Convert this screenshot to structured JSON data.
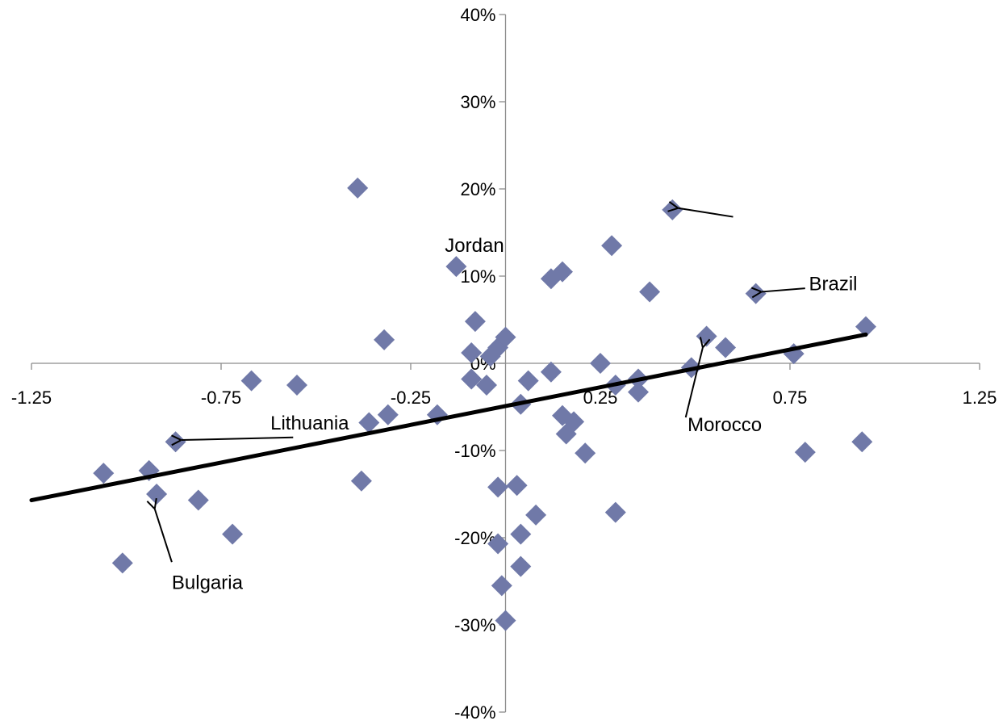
{
  "chart_data": {
    "type": "scatter",
    "title": "",
    "xlabel": "",
    "ylabel": "",
    "xlim": [
      -1.25,
      1.25
    ],
    "ylim": [
      -0.4,
      0.4
    ],
    "x_ticks": [
      {
        "value": -1.25,
        "label": "-1.25"
      },
      {
        "value": -0.75,
        "label": "-0.75"
      },
      {
        "value": -0.25,
        "label": "-0.25"
      },
      {
        "value": 0.25,
        "label": "0.25"
      },
      {
        "value": 0.75,
        "label": "0.75"
      },
      {
        "value": 1.25,
        "label": "1.25"
      }
    ],
    "y_ticks": [
      {
        "value": 0.4,
        "label": "40%"
      },
      {
        "value": 0.3,
        "label": "30%"
      },
      {
        "value": 0.2,
        "label": "20%"
      },
      {
        "value": 0.1,
        "label": "10%"
      },
      {
        "value": 0.0,
        "label": "0%"
      },
      {
        "value": -0.1,
        "label": "-10%"
      },
      {
        "value": -0.2,
        "label": "-20%"
      },
      {
        "value": -0.3,
        "label": "-30%"
      },
      {
        "value": -0.4,
        "label": "-40%"
      }
    ],
    "series": [
      {
        "marker": "diamond",
        "color": "#7079A8",
        "points": [
          {
            "x": -1.06,
            "y": -0.126
          },
          {
            "x": -1.01,
            "y": -0.229
          },
          {
            "x": -0.94,
            "y": -0.123
          },
          {
            "x": -0.92,
            "y": -0.15
          },
          {
            "x": -0.87,
            "y": -0.09
          },
          {
            "x": -0.81,
            "y": -0.157
          },
          {
            "x": -0.72,
            "y": -0.196
          },
          {
            "x": -0.67,
            "y": -0.02
          },
          {
            "x": -0.55,
            "y": -0.025
          },
          {
            "x": -0.39,
            "y": 0.201
          },
          {
            "x": -0.38,
            "y": -0.135
          },
          {
            "x": -0.36,
            "y": -0.068
          },
          {
            "x": -0.32,
            "y": 0.027
          },
          {
            "x": -0.31,
            "y": -0.059
          },
          {
            "x": -0.18,
            "y": -0.059
          },
          {
            "x": -0.13,
            "y": 0.111
          },
          {
            "x": -0.08,
            "y": 0.048
          },
          {
            "x": -0.09,
            "y": 0.012
          },
          {
            "x": -0.09,
            "y": -0.018
          },
          {
            "x": -0.05,
            "y": -0.025
          },
          {
            "x": -0.04,
            "y": 0.008
          },
          {
            "x": -0.02,
            "y": 0.018
          },
          {
            "x": 0.0,
            "y": 0.03
          },
          {
            "x": 0.0,
            "y": -0.295
          },
          {
            "x": -0.01,
            "y": -0.255
          },
          {
            "x": -0.02,
            "y": -0.207
          },
          {
            "x": -0.02,
            "y": -0.142
          },
          {
            "x": 0.03,
            "y": -0.14
          },
          {
            "x": 0.04,
            "y": -0.047
          },
          {
            "x": 0.04,
            "y": -0.196
          },
          {
            "x": 0.04,
            "y": -0.233
          },
          {
            "x": 0.06,
            "y": -0.02
          },
          {
            "x": 0.08,
            "y": -0.174
          },
          {
            "x": 0.12,
            "y": 0.097
          },
          {
            "x": 0.12,
            "y": -0.01
          },
          {
            "x": 0.15,
            "y": 0.105
          },
          {
            "x": 0.15,
            "y": -0.06
          },
          {
            "x": 0.16,
            "y": -0.081
          },
          {
            "x": 0.18,
            "y": -0.067
          },
          {
            "x": 0.21,
            "y": -0.103
          },
          {
            "x": 0.25,
            "y": 0.0
          },
          {
            "x": 0.28,
            "y": 0.135
          },
          {
            "x": 0.29,
            "y": -0.025
          },
          {
            "x": 0.29,
            "y": -0.171
          },
          {
            "x": 0.35,
            "y": -0.018
          },
          {
            "x": 0.35,
            "y": -0.033
          },
          {
            "x": 0.38,
            "y": 0.082
          },
          {
            "x": 0.44,
            "y": 0.176
          },
          {
            "x": 0.49,
            "y": -0.005
          },
          {
            "x": 0.53,
            "y": 0.031
          },
          {
            "x": 0.58,
            "y": 0.018
          },
          {
            "x": 0.66,
            "y": 0.08
          },
          {
            "x": 0.76,
            "y": 0.011
          },
          {
            "x": 0.79,
            "y": -0.102
          },
          {
            "x": 0.94,
            "y": -0.09
          },
          {
            "x": 0.95,
            "y": 0.042
          }
        ]
      }
    ],
    "trendline": {
      "x": [
        -1.25,
        0.95
      ],
      "y": [
        -0.157,
        0.033
      ],
      "color": "#000000"
    },
    "annotations": [
      {
        "text": "Jordan",
        "x": -0.16,
        "y": 0.128
      },
      {
        "text": "Brazil",
        "x": 0.8,
        "y": 0.084
      },
      {
        "text": "Lithuania",
        "x": -0.62,
        "y": -0.076
      },
      {
        "text": "Morocco",
        "x": 0.48,
        "y": -0.078
      },
      {
        "text": "Bulgaria",
        "x": -0.88,
        "y": -0.259
      }
    ],
    "arrows": [
      {
        "from": [
          -0.56,
          -0.085
        ],
        "to": [
          -0.855,
          -0.088
        ]
      },
      {
        "from": [
          -0.88,
          -0.228
        ],
        "to": [
          -0.925,
          -0.167
        ]
      },
      {
        "from": [
          0.79,
          0.086
        ],
        "to": [
          0.675,
          0.082
        ]
      },
      {
        "from": [
          0.475,
          -0.062
        ],
        "to": [
          0.52,
          0.018
        ]
      },
      {
        "from": [
          0.6,
          0.168
        ],
        "to": [
          0.455,
          0.178
        ]
      }
    ],
    "grid": false,
    "legend": "none"
  }
}
